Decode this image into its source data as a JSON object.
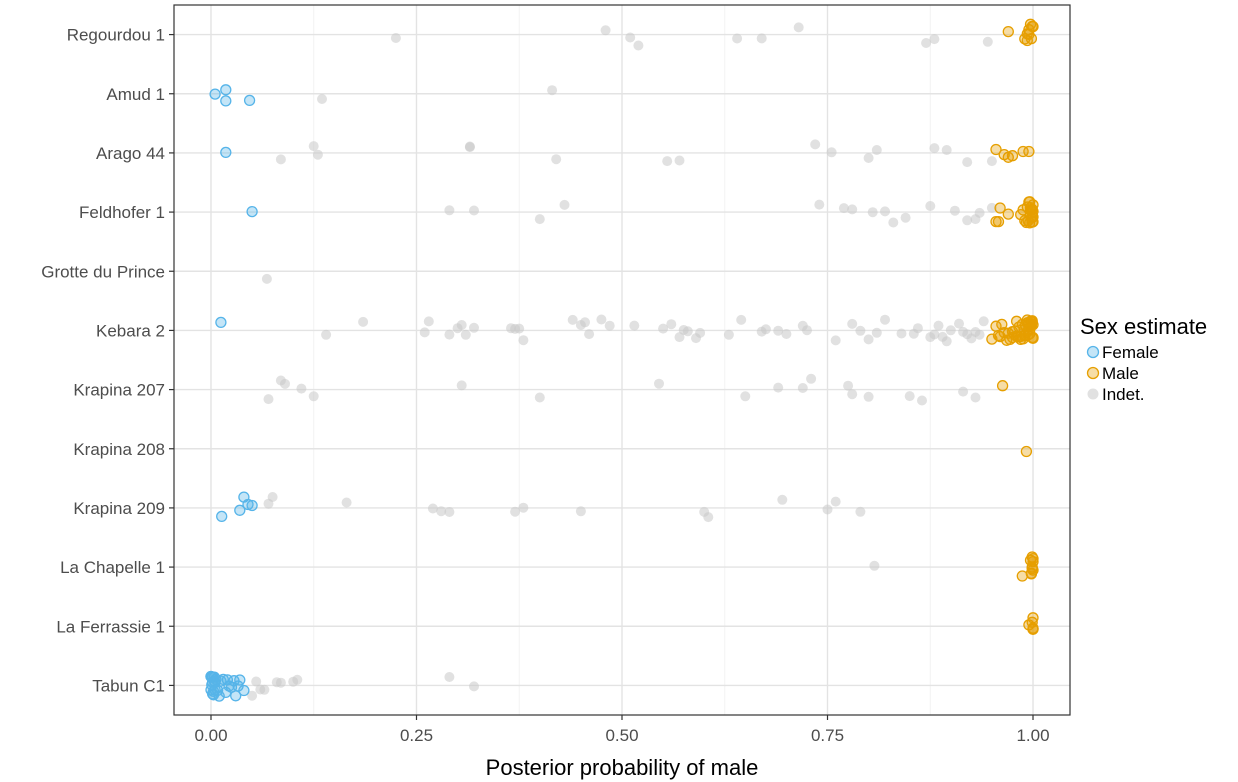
{
  "chart_data": {
    "type": "scatter",
    "title": "",
    "xlabel": "Posterior probability of male",
    "ylabel": "",
    "xlim": [
      -0.045,
      1.045
    ],
    "x_ticks": [
      "0.00",
      "0.25",
      "0.50",
      "0.75",
      "1.00"
    ],
    "x_tick_values": [
      0,
      0.25,
      0.5,
      0.75,
      1.0
    ],
    "grid": true,
    "jitter": "vertical, within each specimen row",
    "categories": [
      "Regourdou 1",
      "Amud 1",
      "Arago 44",
      "Feldhofer 1",
      "Grotte du Prince",
      "Kebara 2",
      "Krapina 207",
      "Krapina 208",
      "Krapina 209",
      "La Chapelle 1",
      "La Ferrassie 1",
      "Tabun C1"
    ],
    "legend": {
      "title": "Sex estimate",
      "placement": "right",
      "entries": [
        "Female",
        "Male",
        "Indet."
      ]
    },
    "colors": {
      "Female": "#56b4e9",
      "Male": "#e69f00",
      "Indet.": "#c8c8c8"
    },
    "series": [
      {
        "name": "Female",
        "color": "#56b4e9",
        "points": [
          {
            "specimen": "Amud 1",
            "x": [
              0.005,
              0.018,
              0.047,
              0.018
            ]
          },
          {
            "specimen": "Arago 44",
            "x": [
              0.018
            ]
          },
          {
            "specimen": "Feldhofer 1",
            "x": [
              0.05
            ]
          },
          {
            "specimen": "Kebara 2",
            "x": [
              0.012
            ]
          },
          {
            "specimen": "Krapina 209",
            "x": [
              0.013,
              0.045,
              0.04,
              0.035,
              0.05
            ]
          },
          {
            "specimen": "Tabun C1",
            "x": [
              0.0,
              0.002,
              0.004,
              0.001,
              0.003,
              0.005,
              0.0,
              0.002,
              0.006,
              0.001,
              0.003,
              0.004,
              0.0,
              0.002,
              0.005,
              0.01,
              0.015,
              0.02,
              0.025,
              0.03,
              0.035,
              0.04,
              0.012,
              0.018,
              0.028,
              0.033,
              0.008,
              0.022
            ]
          }
        ]
      },
      {
        "name": "Male",
        "color": "#e69f00",
        "points": [
          {
            "specimen": "Regourdou 1",
            "x": [
              0.99,
              0.998,
              0.995,
              1.0,
              0.993,
              0.997,
              0.999,
              0.995,
              0.993,
              0.97
            ]
          },
          {
            "specimen": "Arago 44",
            "x": [
              0.97,
              0.975,
              0.965,
              0.955,
              0.988,
              0.995
            ]
          },
          {
            "specimen": "Feldhofer 1",
            "x": [
              0.97,
              0.96,
              0.955,
              0.958,
              0.985,
              0.988,
              0.99,
              0.993,
              0.995,
              0.997,
              0.999,
              1.0,
              0.992,
              0.996,
              0.998,
              0.999,
              1.0,
              0.994,
              0.997,
              0.999,
              1.0,
              0.996,
              0.998,
              1.0,
              0.999
            ]
          },
          {
            "specimen": "Kebara 2",
            "x": [
              0.95,
              0.955,
              0.96,
              0.965,
              0.97,
              0.975,
              0.98,
              0.985,
              0.99,
              0.993,
              0.996,
              0.998,
              1.0,
              0.958,
              0.968,
              0.978,
              0.988,
              0.995,
              0.999,
              0.962,
              0.972,
              0.982,
              0.991,
              0.997,
              1.0,
              0.985,
              0.99,
              0.994,
              0.998,
              0.999,
              0.975,
              0.98,
              0.987,
              0.993,
              0.997,
              1.0,
              0.983,
              0.989,
              0.996,
              0.999
            ]
          },
          {
            "specimen": "Krapina 207",
            "x": [
              0.963
            ]
          },
          {
            "specimen": "Krapina 208",
            "x": [
              0.992
            ]
          },
          {
            "specimen": "La Chapelle 1",
            "x": [
              0.987,
              0.997,
              0.999,
              1.0,
              0.998,
              0.999,
              1.0,
              0.999,
              1.0,
              0.998
            ]
          },
          {
            "specimen": "La Ferrassie 1",
            "x": [
              0.995,
              1.0,
              1.0,
              0.999,
              1.0,
              1.0
            ]
          }
        ]
      },
      {
        "name": "Indet.",
        "color": "#c8c8c8",
        "points": [
          {
            "specimen": "Regourdou 1",
            "x": [
              0.225,
              0.48,
              0.51,
              0.52,
              0.64,
              0.67,
              0.715,
              0.87,
              0.88,
              0.945
            ]
          },
          {
            "specimen": "Amud 1",
            "x": [
              0.135,
              0.415
            ]
          },
          {
            "specimen": "Arago 44",
            "x": [
              0.085,
              0.125,
              0.13,
              0.315,
              0.315,
              0.42,
              0.555,
              0.57,
              0.735,
              0.755,
              0.8,
              0.81,
              0.88,
              0.895,
              0.92,
              0.95
            ]
          },
          {
            "specimen": "Feldhofer 1",
            "x": [
              0.29,
              0.32,
              0.4,
              0.43,
              0.74,
              0.77,
              0.78,
              0.805,
              0.83,
              0.82,
              0.845,
              0.875,
              0.905,
              0.92,
              0.93,
              0.95,
              0.935
            ]
          },
          {
            "specimen": "Grotte du Prince",
            "x": [
              0.068
            ]
          },
          {
            "specimen": "Kebara 2",
            "x": [
              0.14,
              0.185,
              0.26,
              0.265,
              0.29,
              0.3,
              0.31,
              0.305,
              0.32,
              0.365,
              0.375,
              0.38,
              0.37,
              0.44,
              0.45,
              0.455,
              0.46,
              0.475,
              0.485,
              0.515,
              0.55,
              0.56,
              0.57,
              0.575,
              0.58,
              0.59,
              0.595,
              0.63,
              0.645,
              0.67,
              0.675,
              0.69,
              0.7,
              0.72,
              0.725,
              0.76,
              0.78,
              0.79,
              0.8,
              0.81,
              0.82,
              0.84,
              0.855,
              0.86,
              0.875,
              0.88,
              0.885,
              0.89,
              0.895,
              0.9,
              0.91,
              0.915,
              0.92,
              0.925,
              0.93,
              0.935,
              0.94
            ]
          },
          {
            "specimen": "Krapina 207",
            "x": [
              0.07,
              0.085,
              0.09,
              0.11,
              0.125,
              0.305,
              0.4,
              0.545,
              0.65,
              0.69,
              0.72,
              0.73,
              0.775,
              0.78,
              0.8,
              0.85,
              0.865,
              0.915,
              0.93
            ]
          },
          {
            "specimen": "Krapina 209",
            "x": [
              0.07,
              0.075,
              0.165,
              0.27,
              0.28,
              0.29,
              0.37,
              0.38,
              0.45,
              0.605,
              0.6,
              0.695,
              0.75,
              0.76,
              0.79
            ]
          },
          {
            "specimen": "La Chapelle 1",
            "x": [
              0.807
            ]
          },
          {
            "specimen": "Tabun C1",
            "x": [
              0.055,
              0.06,
              0.08,
              0.085,
              0.105,
              0.1,
              0.29,
              0.32,
              0.05,
              0.065
            ]
          }
        ]
      }
    ]
  }
}
